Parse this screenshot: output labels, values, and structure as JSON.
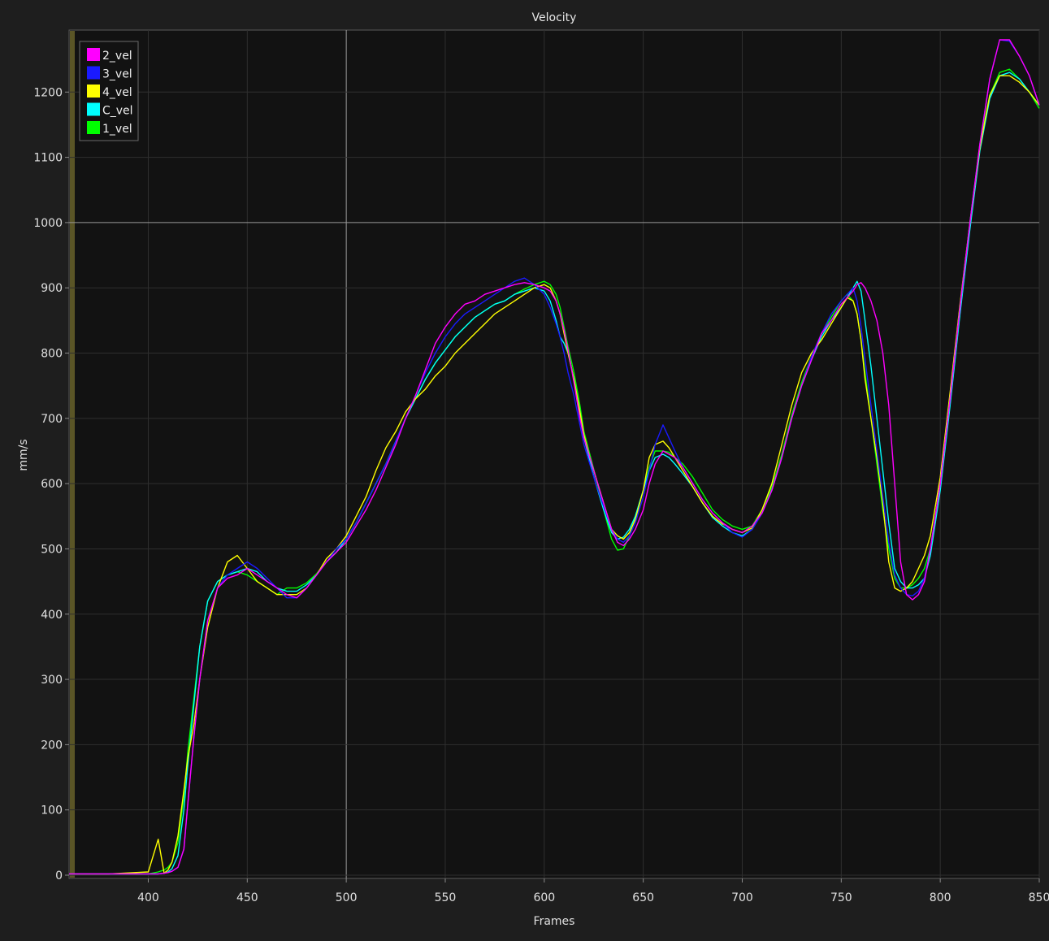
{
  "chart_data": {
    "type": "line",
    "title": "Velocity",
    "xlabel": "Frames",
    "ylabel": "mm/s",
    "xlim": [
      360,
      850
    ],
    "ylim": [
      -5,
      1295
    ],
    "x_ticks": [
      400,
      450,
      500,
      550,
      600,
      650,
      700,
      750,
      800,
      850
    ],
    "y_ticks": [
      0,
      100,
      200,
      300,
      400,
      500,
      600,
      700,
      800,
      900,
      1000,
      1100,
      1200
    ],
    "grid": true,
    "emphasized_gridlines": {
      "x": 500,
      "y": 1000
    },
    "legend_position": "top-left",
    "x": [
      360,
      380,
      400,
      405,
      408,
      410,
      412,
      415,
      418,
      420,
      423,
      426,
      430,
      435,
      440,
      445,
      450,
      455,
      460,
      465,
      470,
      475,
      480,
      485,
      490,
      495,
      500,
      505,
      510,
      515,
      520,
      525,
      530,
      535,
      540,
      545,
      550,
      555,
      560,
      565,
      570,
      575,
      580,
      585,
      590,
      595,
      600,
      603,
      606,
      608,
      610,
      612,
      615,
      618,
      620,
      623,
      626,
      630,
      634,
      637,
      640,
      643,
      646,
      650,
      653,
      656,
      660,
      663,
      666,
      670,
      675,
      680,
      685,
      690,
      695,
      700,
      705,
      710,
      715,
      720,
      725,
      730,
      735,
      740,
      745,
      750,
      753,
      756,
      758,
      760,
      762,
      765,
      768,
      771,
      774,
      777,
      780,
      783,
      786,
      789,
      792,
      795,
      800,
      805,
      810,
      815,
      820,
      825,
      830,
      835,
      840,
      845,
      850
    ],
    "series": [
      {
        "name": "2_vel",
        "color": "#ff00ff",
        "values": [
          2,
          2,
          2,
          2,
          3,
          4,
          6,
          12,
          40,
          110,
          210,
          300,
          390,
          440,
          455,
          460,
          470,
          460,
          450,
          440,
          430,
          425,
          440,
          460,
          480,
          495,
          510,
          535,
          560,
          590,
          625,
          660,
          700,
          735,
          775,
          815,
          840,
          860,
          875,
          880,
          890,
          895,
          900,
          905,
          908,
          905,
          900,
          895,
          880,
          860,
          835,
          805,
          755,
          700,
          670,
          640,
          610,
          570,
          530,
          510,
          505,
          515,
          530,
          560,
          600,
          630,
          650,
          645,
          640,
          625,
          600,
          575,
          555,
          540,
          530,
          525,
          535,
          555,
          590,
          640,
          700,
          750,
          790,
          830,
          850,
          875,
          885,
          895,
          905,
          908,
          900,
          880,
          850,
          800,
          720,
          600,
          480,
          430,
          422,
          430,
          450,
          500,
          600,
          730,
          870,
          1000,
          1120,
          1220,
          1280,
          1280,
          1255,
          1225,
          1180
        ]
      },
      {
        "name": "3_vel",
        "color": "#1a1aff",
        "values": [
          2,
          2,
          2,
          2,
          3,
          4,
          6,
          12,
          40,
          110,
          210,
          300,
          390,
          440,
          460,
          470,
          480,
          470,
          455,
          440,
          425,
          425,
          440,
          460,
          480,
          500,
          515,
          540,
          570,
          600,
          630,
          665,
          700,
          735,
          770,
          800,
          825,
          845,
          860,
          870,
          880,
          890,
          900,
          910,
          915,
          905,
          890,
          870,
          845,
          825,
          800,
          770,
          735,
          690,
          660,
          630,
          600,
          565,
          530,
          515,
          510,
          520,
          540,
          580,
          620,
          660,
          690,
          670,
          650,
          625,
          600,
          575,
          555,
          540,
          525,
          518,
          530,
          555,
          590,
          640,
          700,
          750,
          795,
          830,
          860,
          880,
          890,
          900,
          880,
          840,
          790,
          720,
          650,
          580,
          510,
          460,
          440,
          430,
          428,
          435,
          455,
          500,
          600,
          730,
          870,
          1000,
          1120,
          1220,
          1280,
          1278,
          1255,
          1225,
          1180
        ]
      },
      {
        "name": "4_vel",
        "color": "#ffff00",
        "values": [
          2,
          2,
          5,
          55,
          3,
          8,
          20,
          60,
          130,
          180,
          230,
          300,
          380,
          440,
          480,
          490,
          470,
          450,
          440,
          430,
          430,
          430,
          440,
          460,
          485,
          500,
          520,
          550,
          580,
          620,
          655,
          680,
          710,
          730,
          745,
          765,
          780,
          800,
          815,
          830,
          845,
          860,
          870,
          880,
          890,
          900,
          905,
          900,
          880,
          860,
          830,
          800,
          760,
          710,
          675,
          640,
          610,
          570,
          530,
          520,
          515,
          525,
          545,
          590,
          640,
          660,
          665,
          655,
          640,
          620,
          595,
          570,
          550,
          538,
          530,
          525,
          532,
          560,
          600,
          660,
          720,
          770,
          800,
          820,
          845,
          870,
          885,
          880,
          860,
          820,
          760,
          700,
          640,
          570,
          480,
          440,
          435,
          440,
          450,
          470,
          490,
          520,
          610,
          740,
          875,
          1000,
          1115,
          1195,
          1225,
          1225,
          1215,
          1200,
          1180
        ]
      },
      {
        "name": "C_vel",
        "color": "#00ffff",
        "values": [
          2,
          2,
          2,
          2,
          3,
          5,
          10,
          30,
          100,
          170,
          260,
          350,
          420,
          450,
          460,
          465,
          470,
          465,
          450,
          440,
          435,
          435,
          445,
          460,
          480,
          495,
          515,
          540,
          570,
          600,
          630,
          665,
          700,
          730,
          760,
          785,
          805,
          825,
          840,
          855,
          865,
          875,
          880,
          890,
          895,
          900,
          895,
          880,
          850,
          825,
          815,
          800,
          760,
          710,
          670,
          635,
          600,
          560,
          525,
          515,
          518,
          530,
          550,
          590,
          620,
          640,
          645,
          640,
          630,
          615,
          595,
          570,
          548,
          535,
          525,
          520,
          530,
          555,
          590,
          640,
          700,
          750,
          790,
          825,
          850,
          870,
          885,
          900,
          910,
          895,
          850,
          780,
          700,
          620,
          540,
          470,
          450,
          440,
          440,
          445,
          455,
          490,
          590,
          720,
          860,
          990,
          1110,
          1190,
          1225,
          1230,
          1220,
          1200,
          1180
        ]
      },
      {
        "name": "1_vel",
        "color": "#00ff00",
        "values": [
          2,
          2,
          2,
          5,
          8,
          12,
          20,
          50,
          120,
          190,
          270,
          350,
          420,
          450,
          460,
          465,
          460,
          450,
          440,
          430,
          440,
          440,
          448,
          462,
          480,
          495,
          515,
          540,
          570,
          600,
          630,
          665,
          700,
          730,
          760,
          785,
          805,
          825,
          840,
          855,
          865,
          875,
          880,
          890,
          898,
          905,
          910,
          905,
          890,
          870,
          840,
          810,
          770,
          720,
          680,
          645,
          610,
          560,
          515,
          498,
          500,
          520,
          550,
          590,
          625,
          650,
          650,
          648,
          640,
          630,
          610,
          585,
          560,
          545,
          535,
          530,
          535,
          560,
          595,
          645,
          705,
          755,
          795,
          830,
          855,
          880,
          890,
          880,
          860,
          820,
          770,
          700,
          630,
          560,
          500,
          455,
          440,
          440,
          445,
          455,
          470,
          500,
          600,
          730,
          870,
          1000,
          1120,
          1195,
          1230,
          1235,
          1220,
          1200,
          1175
        ]
      }
    ]
  }
}
